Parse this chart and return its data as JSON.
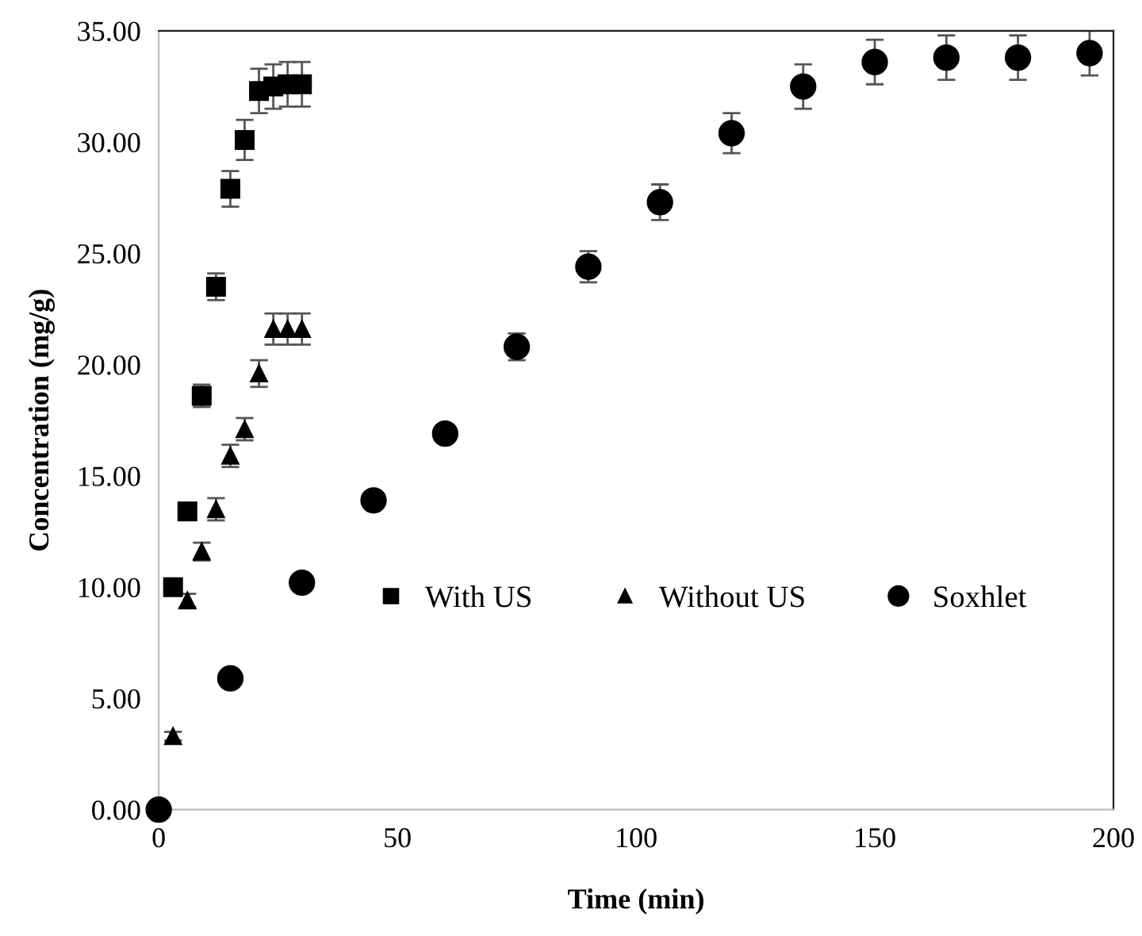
{
  "chart_data": {
    "type": "scatter",
    "xlabel": "Time (min)",
    "ylabel": "Concentration (mg/g)",
    "xlim": [
      0,
      200
    ],
    "xticks": [
      0,
      50,
      100,
      150,
      200
    ],
    "ylim": [
      0,
      35
    ],
    "yticks": [
      {
        "value": 0,
        "label": "0.00"
      },
      {
        "value": 5,
        "label": "5.00"
      },
      {
        "value": 10,
        "label": "10.00"
      },
      {
        "value": 15,
        "label": "15.00"
      },
      {
        "value": 20,
        "label": "20.00"
      },
      {
        "value": 25,
        "label": "25.00"
      },
      {
        "value": 30,
        "label": "30.00"
      },
      {
        "value": 35,
        "label": "35.00"
      }
    ],
    "grid": false,
    "legend": "bottom",
    "series": [
      {
        "name": "With US",
        "color": "#000000",
        "marker": "square",
        "x": [
          3,
          6,
          9,
          12,
          15,
          18,
          21,
          24,
          27,
          30
        ],
        "values": [
          10.0,
          13.4,
          18.6,
          23.5,
          27.9,
          30.1,
          32.3,
          32.5,
          32.6,
          32.6
        ],
        "errors": [
          0.3,
          0.3,
          0.5,
          0.6,
          0.8,
          0.9,
          1.0,
          1.0,
          1.0,
          1.0
        ]
      },
      {
        "name": "Without US",
        "color": "#000000",
        "marker": "triangle",
        "x": [
          3,
          6,
          9,
          12,
          15,
          18,
          21,
          24,
          27,
          30
        ],
        "values": [
          3.3,
          9.4,
          11.6,
          13.5,
          15.9,
          17.1,
          19.6,
          21.6,
          21.6,
          21.6
        ],
        "errors": [
          0.2,
          0.3,
          0.4,
          0.5,
          0.5,
          0.5,
          0.6,
          0.7,
          0.7,
          0.7
        ]
      },
      {
        "name": "Soxhlet",
        "color": "#000000",
        "marker": "circle",
        "x": [
          0,
          15,
          30,
          45,
          60,
          75,
          90,
          105,
          120,
          135,
          150,
          165,
          180,
          195
        ],
        "values": [
          0,
          5.9,
          10.2,
          13.9,
          16.9,
          20.8,
          24.4,
          27.3,
          30.4,
          32.5,
          33.6,
          33.8,
          33.8,
          34.0
        ],
        "errors": [
          null,
          null,
          null,
          null,
          0.4,
          0.6,
          0.7,
          0.8,
          0.9,
          1.0,
          1.0,
          1.0,
          1.0,
          1.0
        ]
      }
    ]
  }
}
